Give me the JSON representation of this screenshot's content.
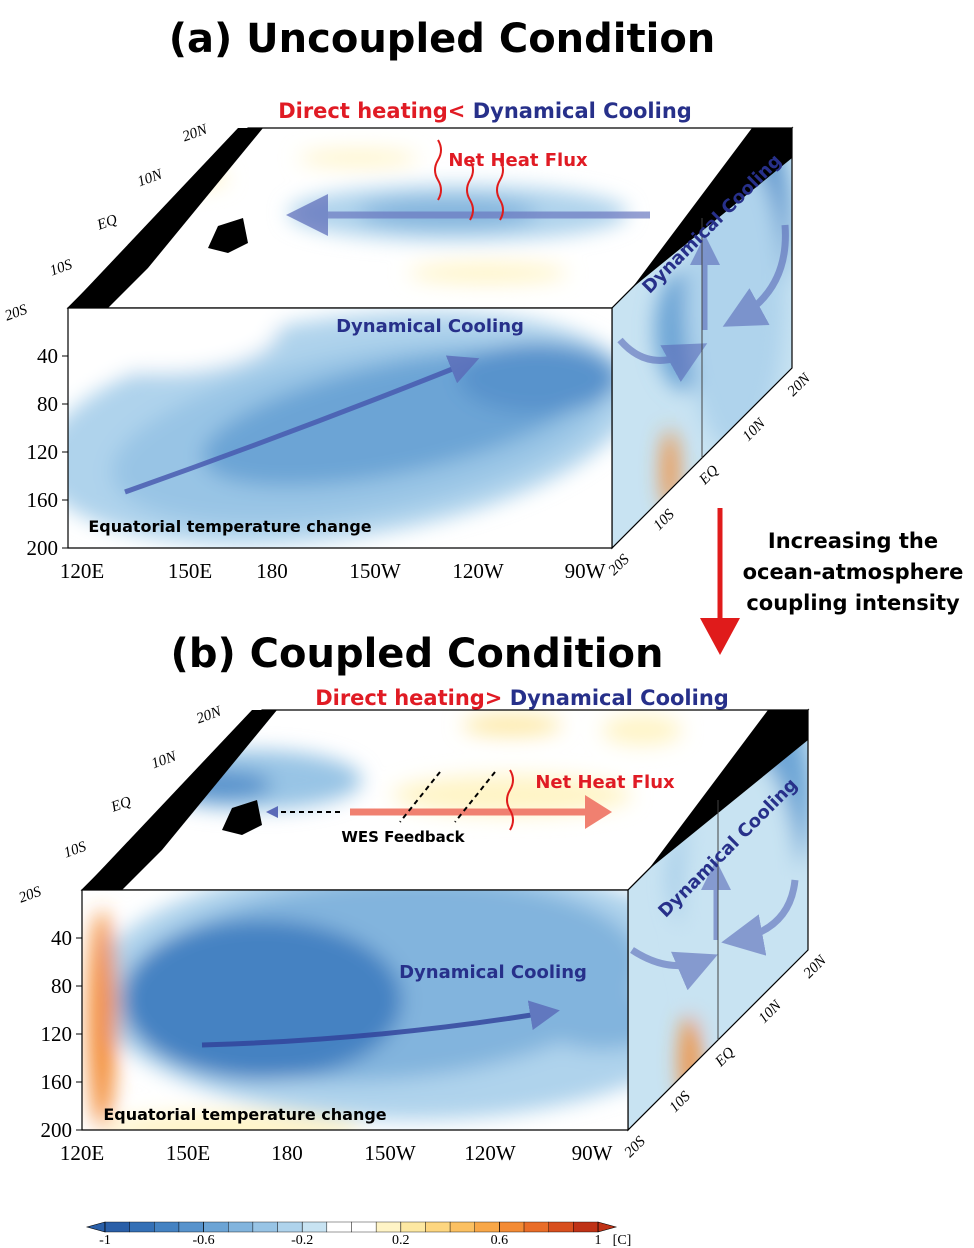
{
  "panels": [
    {
      "title": "(a) Uncoupled Condition",
      "heading": {
        "heating": "Direct heating<",
        "cooling": " Dynamical Cooling"
      },
      "net_heat_flux": "Net Heat Flux",
      "front_label": "Dynamical Cooling",
      "side_label": "Dynamical Cooling",
      "section_label": "Equatorial temperature change"
    },
    {
      "title": "(b) Coupled Condition",
      "heading": {
        "heating": "Direct heating>",
        "cooling": " Dynamical Cooling"
      },
      "net_heat_flux": "Net Heat Flux",
      "feedback_label": "WES Feedback",
      "front_label": "Dynamical Cooling",
      "side_label": "Dynamical Cooling",
      "section_label": "Equatorial temperature change"
    }
  ],
  "depth_ticks": [
    40,
    80,
    120,
    160,
    200
  ],
  "lon_ticks": [
    "120E",
    "150E",
    "180",
    "150W",
    "120W",
    "90W"
  ],
  "lat_ticks": [
    "20N",
    "10N",
    "EQ",
    "10S",
    "20S"
  ],
  "coupling_arrow_label": [
    "Increasing the",
    "ocean-atmosphere",
    "coupling intensity"
  ],
  "colorbar": {
    "ticks": [
      -1,
      -0.6,
      -0.2,
      0.2,
      0.6,
      1
    ],
    "unit": "[C]",
    "colors": [
      "#2a5fa8",
      "#3470b6",
      "#4482c2",
      "#5893cc",
      "#6ca4d5",
      "#82b4dd",
      "#98c4e5",
      "#afd3ec",
      "#c8e3f2",
      "#ffffff",
      "#ffffff",
      "#fff4c6",
      "#fde8a2",
      "#fdd680",
      "#fbc062",
      "#f8a748",
      "#f38b35",
      "#e96d28",
      "#d84f1e",
      "#bf3216"
    ]
  }
}
